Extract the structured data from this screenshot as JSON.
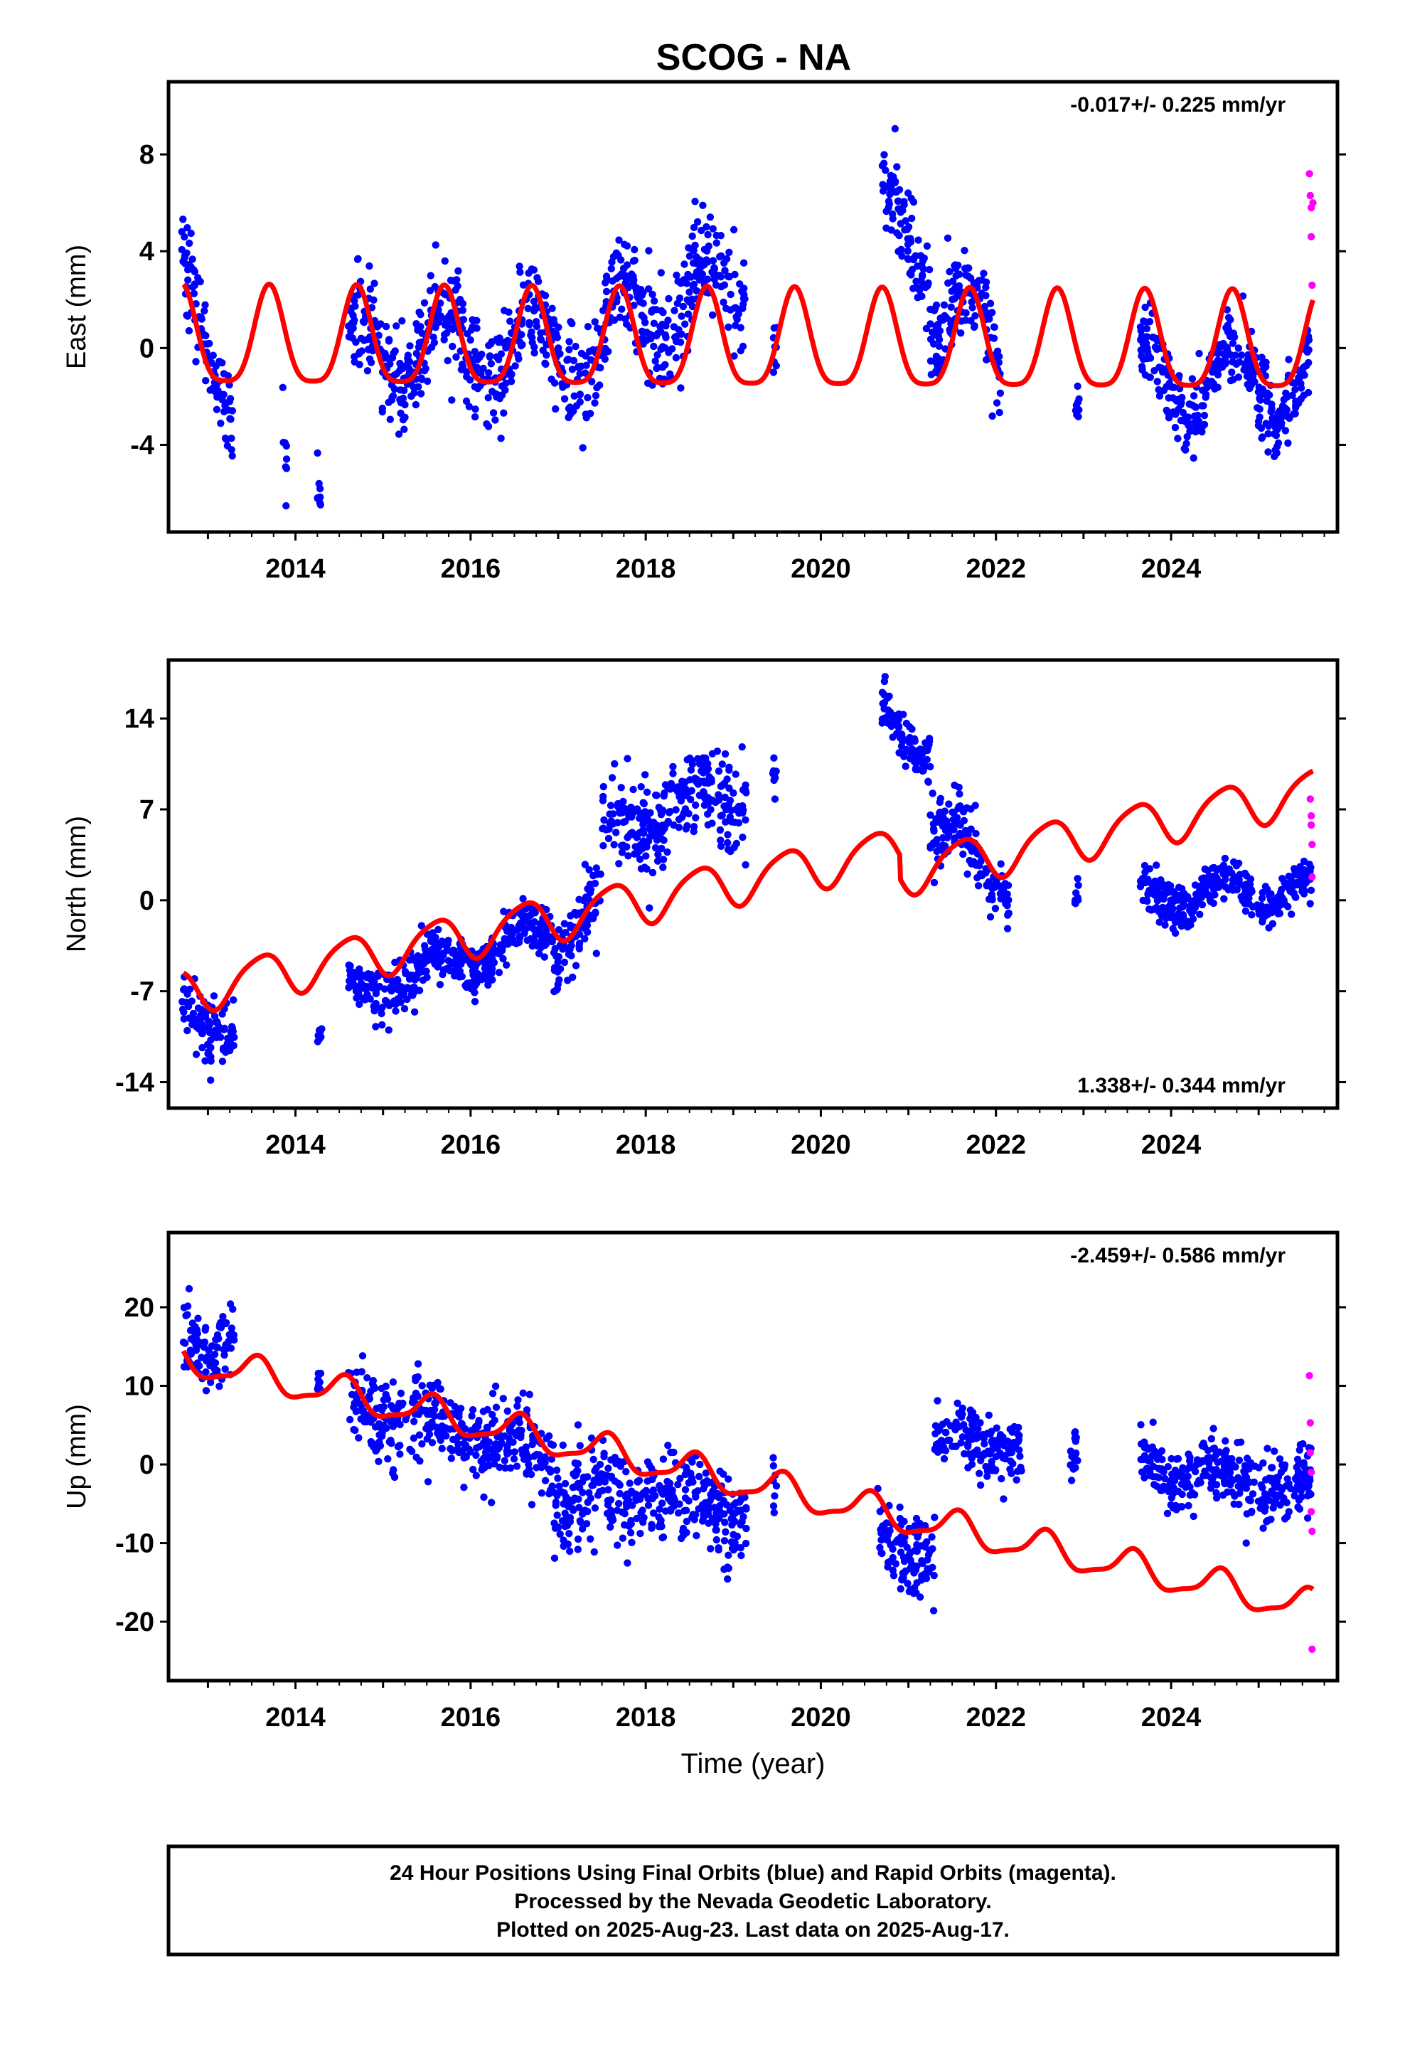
{
  "title": "SCOG - NA",
  "colors": {
    "final_orbits": "#0000ff",
    "rapid_orbits": "#ff00ff",
    "model_fit": "#ff0000",
    "frame": "#000000"
  },
  "footer": {
    "line1": "24 Hour Positions Using Final Orbits (blue) and Rapid Orbits (magenta).",
    "line2": "Processed by the Nevada Geodetic Laboratory.",
    "line3": "Plotted on 2025-Aug-23. Last data on 2025-Aug-17."
  },
  "chart_data": [
    {
      "type": "scatter",
      "ylabel": "East (mm)",
      "xlabel": "",
      "rate_label": "-0.017+/- 0.225 mm/yr",
      "rate_position": "top-right",
      "xlim": [
        2012.55,
        2025.9
      ],
      "ylim": [
        -7.6,
        11.0
      ],
      "xticks": [
        "2014",
        "2016",
        "2018",
        "2020",
        "2022",
        "2024"
      ],
      "yticks": [
        "8",
        "4",
        "0",
        "-4"
      ],
      "ytick_values": [
        8,
        4,
        0,
        -4
      ],
      "grid": false,
      "fit": {
        "offset": 0.1,
        "trend": -0.017,
        "ref_year": 2019,
        "annual_amp": 2.0,
        "annual_peak": 0.7,
        "semi_amp": 0.45,
        "semi_peak": 0.2,
        "steps": []
      },
      "final_segments": [
        {
          "start": 2012.7,
          "end": 2013.28,
          "center": 0.4,
          "slope": -7.0,
          "spread": 1.6
        },
        {
          "start": 2013.85,
          "end": 2013.9,
          "center": -4.0,
          "slope": 0,
          "spread": 1.2
        },
        {
          "start": 2014.25,
          "end": 2014.3,
          "center": -5.5,
          "slope": 0,
          "spread": 0.8
        },
        {
          "start": 2014.6,
          "end": 2017.55,
          "center": 0.0,
          "slope": 0,
          "spread": 1.7
        },
        {
          "start": 2017.55,
          "end": 2019.15,
          "center": 1.9,
          "slope": 0.9,
          "spread": 1.8
        },
        {
          "start": 2019.45,
          "end": 2019.5,
          "center": 0.5,
          "slope": 0,
          "spread": 1.2
        },
        {
          "start": 2020.7,
          "end": 2021.25,
          "center": 5.0,
          "slope": -2.5,
          "spread": 1.6
        },
        {
          "start": 2021.25,
          "end": 2022.05,
          "center": 1.0,
          "slope": -2.5,
          "spread": 1.6
        },
        {
          "start": 2022.9,
          "end": 2022.95,
          "center": -2.5,
          "slope": 0,
          "spread": 1.0
        },
        {
          "start": 2023.65,
          "end": 2025.6,
          "center": -1.4,
          "slope": 0,
          "spread": 1.4
        }
      ],
      "rapid_points": [
        [
          2025.58,
          7.2
        ],
        [
          2025.59,
          6.3
        ],
        [
          2025.6,
          5.8
        ],
        [
          2025.6,
          4.6
        ],
        [
          2025.61,
          2.6
        ],
        [
          2025.62,
          6.0
        ]
      ]
    },
    {
      "type": "scatter",
      "ylabel": "North (mm)",
      "xlabel": "",
      "rate_label": "1.338+/- 0.344 mm/yr",
      "rate_position": "bottom-right",
      "xlim": [
        2012.55,
        2025.9
      ],
      "ylim": [
        -16.0,
        18.5
      ],
      "xticks": [
        "2014",
        "2016",
        "2018",
        "2020",
        "2022",
        "2024"
      ],
      "yticks": [
        "14",
        "7",
        "0",
        "-7",
        "-14"
      ],
      "ytick_values": [
        14,
        7,
        0,
        -7,
        -14
      ],
      "grid": false,
      "fit": {
        "offset": 1.4,
        "trend": 1.338,
        "ref_year": 2019,
        "annual_amp": 1.7,
        "annual_peak": 0.6,
        "semi_amp": 0.3,
        "semi_peak": 0.3,
        "steps": [
          {
            "year": 2020.9,
            "size": -1.8
          }
        ]
      },
      "final_segments": [
        {
          "start": 2012.7,
          "end": 2013.3,
          "center": -9.0,
          "slope": -2.5,
          "spread": 2.0
        },
        {
          "start": 2014.25,
          "end": 2014.3,
          "center": -10.0,
          "slope": 0,
          "spread": 1.3
        },
        {
          "start": 2014.6,
          "end": 2016.95,
          "center": -4.8,
          "slope": 2.2,
          "spread": 1.8
        },
        {
          "start": 2016.95,
          "end": 2017.5,
          "center": -1.5,
          "slope": 7.0,
          "spread": 2.5
        },
        {
          "start": 2017.5,
          "end": 2019.15,
          "center": 6.8,
          "slope": 1.8,
          "spread": 3.0
        },
        {
          "start": 2019.45,
          "end": 2019.5,
          "center": 10.0,
          "slope": 0,
          "spread": 2.0
        },
        {
          "start": 2020.7,
          "end": 2021.25,
          "center": 13.0,
          "slope": -4.0,
          "spread": 1.6
        },
        {
          "start": 2021.25,
          "end": 2022.15,
          "center": 3.5,
          "slope": -5.5,
          "spread": 2.0
        },
        {
          "start": 2022.9,
          "end": 2022.95,
          "center": 0.0,
          "slope": 0,
          "spread": 1.3
        },
        {
          "start": 2023.65,
          "end": 2025.6,
          "center": 0.6,
          "slope": 0.3,
          "spread": 1.5
        }
      ],
      "rapid_points": [
        [
          2025.59,
          7.8
        ],
        [
          2025.6,
          6.5
        ],
        [
          2025.6,
          5.8
        ],
        [
          2025.61,
          4.3
        ],
        [
          2025.61,
          1.8
        ]
      ]
    },
    {
      "type": "scatter",
      "ylabel": "Up (mm)",
      "xlabel": "Time (year)",
      "rate_label": "-2.459+/- 0.586 mm/yr",
      "rate_position": "top-right",
      "xlim": [
        2012.55,
        2025.9
      ],
      "ylim": [
        -27.5,
        29.5
      ],
      "xticks": [
        "2014",
        "2016",
        "2018",
        "2020",
        "2022",
        "2024"
      ],
      "yticks": [
        "20",
        "10",
        "0",
        "-10",
        "-20"
      ],
      "ytick_values": [
        20,
        10,
        0,
        -10,
        -20
      ],
      "grid": false,
      "fit": {
        "offset": -2.0,
        "trend": -2.459,
        "ref_year": 2019,
        "annual_amp": 2.0,
        "annual_peak": 0.55,
        "semi_amp": 0.6,
        "semi_peak": 0.1,
        "steps": []
      },
      "final_segments": [
        {
          "start": 2012.7,
          "end": 2013.3,
          "center": 16.0,
          "slope": -2.0,
          "spread": 4.0
        },
        {
          "start": 2014.25,
          "end": 2014.3,
          "center": 10.0,
          "slope": 0,
          "spread": 2.5
        },
        {
          "start": 2014.6,
          "end": 2016.95,
          "center": 4.5,
          "slope": -3.0,
          "spread": 4.5
        },
        {
          "start": 2016.95,
          "end": 2019.15,
          "center": -4.5,
          "slope": -1.5,
          "spread": 5.0
        },
        {
          "start": 2019.45,
          "end": 2019.5,
          "center": -3.0,
          "slope": 0,
          "spread": 3.5
        },
        {
          "start": 2020.65,
          "end": 2021.3,
          "center": -11.0,
          "slope": -4.0,
          "spread": 4.5
        },
        {
          "start": 2021.3,
          "end": 2022.3,
          "center": 3.0,
          "slope": 0,
          "spread": 3.5
        },
        {
          "start": 2022.85,
          "end": 2022.95,
          "center": 1.0,
          "slope": 0,
          "spread": 3.5
        },
        {
          "start": 2023.65,
          "end": 2025.6,
          "center": -1.5,
          "slope": -1.8,
          "spread": 3.5
        }
      ],
      "rapid_points": [
        [
          2025.58,
          11.3
        ],
        [
          2025.59,
          5.3
        ],
        [
          2025.59,
          1.5
        ],
        [
          2025.6,
          -1.0
        ],
        [
          2025.6,
          -6.0
        ],
        [
          2025.61,
          -8.5
        ],
        [
          2025.61,
          -23.5
        ]
      ]
    }
  ]
}
